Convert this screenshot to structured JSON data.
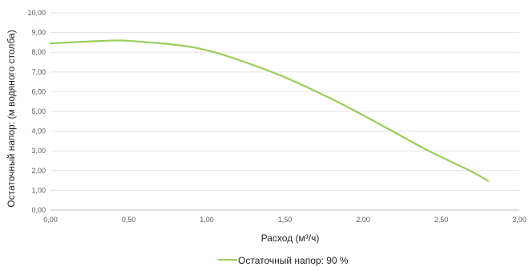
{
  "chart_data": {
    "type": "line",
    "xlabel": "Расход (м³/ч)",
    "ylabel": "Остаточный напор: (м водяного столба)",
    "xlim": [
      0,
      3
    ],
    "ylim": [
      0,
      10
    ],
    "x_ticks": [
      "0,00",
      "0,50",
      "1,00",
      "1,50",
      "2,00",
      "2,50",
      "3,00"
    ],
    "y_ticks": [
      "0,00",
      "1,00",
      "2,00",
      "3,00",
      "4,00",
      "5,00",
      "6,00",
      "7,00",
      "8,00",
      "9,00",
      "10,00"
    ],
    "grid": "horizontal",
    "legend_position": "bottom",
    "series": [
      {
        "name": "Остаточный напор: 90 %",
        "color": "#9ACD5A",
        "x": [
          0.0,
          0.2,
          0.44,
          0.6,
          0.75,
          0.9,
          1.05,
          1.2,
          1.35,
          1.5,
          1.65,
          1.8,
          1.95,
          2.1,
          2.25,
          2.4,
          2.55,
          2.7,
          2.8
        ],
        "y": [
          8.45,
          8.53,
          8.6,
          8.52,
          8.42,
          8.27,
          8.0,
          7.62,
          7.2,
          6.73,
          6.2,
          5.63,
          5.02,
          4.38,
          3.73,
          3.08,
          2.5,
          1.93,
          1.48
        ]
      }
    ]
  }
}
